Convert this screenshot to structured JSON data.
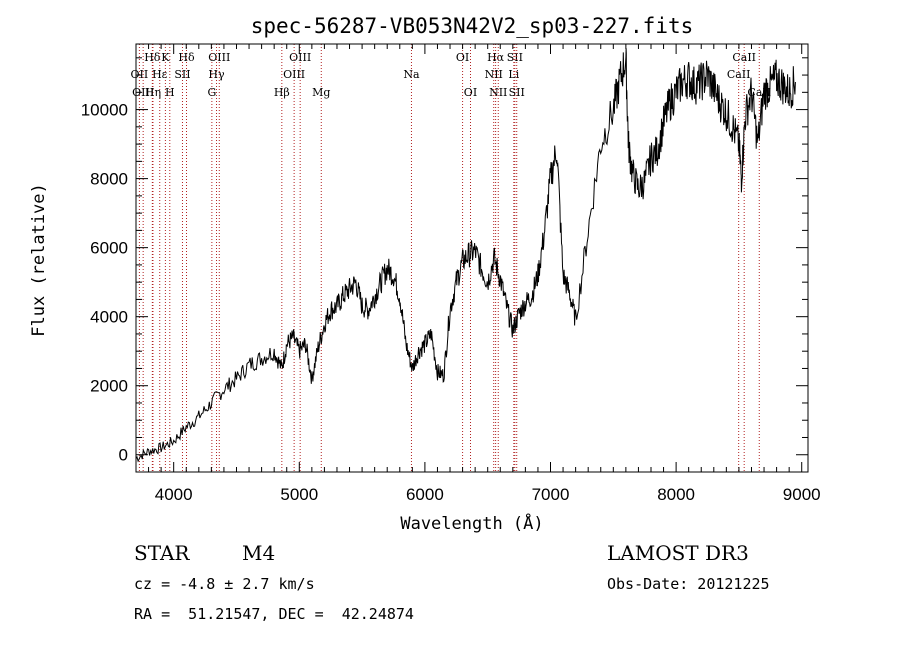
{
  "chart_data": {
    "type": "line",
    "title": "spec-56287-VB053N42V2_sp03-227.fits",
    "xlabel": "Wavelength (Å)",
    "ylabel": "Flux (relative)",
    "xlim": [
      3700,
      9050
    ],
    "ylim": [
      -500,
      11900
    ],
    "x_ticks": [
      "4000",
      "5000",
      "6000",
      "7000",
      "8000",
      "9000"
    ],
    "y_ticks": [
      "0",
      "2000",
      "4000",
      "6000",
      "8000",
      "10000"
    ],
    "grid": false,
    "series": [
      {
        "x": [
          3700,
          3800,
          3900,
          4000,
          4100,
          4200,
          4300,
          4400,
          4500,
          4600,
          4700,
          4800,
          4860,
          4900,
          4950,
          5000,
          5050,
          5100,
          5150,
          5200,
          5250,
          5300,
          5350,
          5400,
          5450,
          5500,
          5550,
          5600,
          5650,
          5700,
          5750,
          5800,
          5850,
          5900,
          5950,
          6000,
          6050,
          6100,
          6150,
          6200,
          6250,
          6300,
          6350,
          6400,
          6450,
          6500,
          6550,
          6600,
          6650,
          6700,
          6750,
          6800,
          6850,
          6900,
          6950,
          7000,
          7050,
          7100,
          7150,
          7200,
          7300,
          7400,
          7500,
          7550,
          7600,
          7620,
          7650,
          7700,
          7750,
          7800,
          7850,
          7900,
          7950,
          8000,
          8050,
          8100,
          8150,
          8200,
          8250,
          8300,
          8350,
          8400,
          8450,
          8500,
          8520,
          8550,
          8600,
          8650,
          8700,
          8750,
          8800,
          8850,
          8900,
          8950
        ],
        "y": [
          -100,
          100,
          200,
          400,
          800,
          1100,
          1500,
          1900,
          2200,
          2600,
          2800,
          3000,
          2500,
          3200,
          3400,
          3000,
          3200,
          2200,
          3100,
          3800,
          4200,
          4300,
          4600,
          4800,
          5000,
          4300,
          4200,
          4600,
          5000,
          5400,
          5200,
          4600,
          3200,
          2500,
          3000,
          3200,
          3500,
          2400,
          2300,
          4200,
          5000,
          5600,
          5800,
          5900,
          5400,
          5000,
          5700,
          5100,
          4300,
          3600,
          4100,
          4400,
          4600,
          5200,
          6400,
          8000,
          8900,
          5200,
          4700,
          3900,
          6500,
          9000,
          10000,
          10800,
          11500,
          9000,
          8200,
          7700,
          7900,
          8600,
          8800,
          9600,
          10200,
          10500,
          10800,
          10900,
          10700,
          10800,
          11000,
          10600,
          10200,
          9900,
          9500,
          9000,
          8000,
          9800,
          10500,
          9000,
          10500,
          10700,
          10900,
          10700,
          10500,
          10800
        ]
      }
    ],
    "line_markers": [
      {
        "label": "Hδ",
        "wavelength": 3830,
        "row": 1
      },
      {
        "label": "OII",
        "wavelength": 3727,
        "row": 2
      },
      {
        "label": "OIII",
        "wavelength": 3757,
        "row": 3
      },
      {
        "label": "K",
        "wavelength": 3934,
        "row": 1
      },
      {
        "label": "Hε",
        "wavelength": 3889,
        "row": 2
      },
      {
        "label": "Hη",
        "wavelength": 3835,
        "row": 3
      },
      {
        "label": "Hδ",
        "wavelength": 4102,
        "row": 1
      },
      {
        "label": "SII",
        "wavelength": 4070,
        "row": 2
      },
      {
        "label": "H",
        "wavelength": 3969,
        "row": 3
      },
      {
        "label": "OIII",
        "wavelength": 4363,
        "row": 1
      },
      {
        "label": "Hγ",
        "wavelength": 4341,
        "row": 2
      },
      {
        "label": "G",
        "wavelength": 4304,
        "row": 3
      },
      {
        "label": "OIII",
        "wavelength": 5007,
        "row": 1
      },
      {
        "label": "OIII",
        "wavelength": 4959,
        "row": 2
      },
      {
        "label": "Hβ",
        "wavelength": 4861,
        "row": 3
      },
      {
        "label": "Mg",
        "wavelength": 5175,
        "row": 3
      },
      {
        "label": "Na",
        "wavelength": 5893,
        "row": 2
      },
      {
        "label": "OI",
        "wavelength": 6300,
        "row": 1
      },
      {
        "label": "OI",
        "wavelength": 6363,
        "row": 3
      },
      {
        "label": "Hα",
        "wavelength": 6563,
        "row": 1
      },
      {
        "label": "SII",
        "wavelength": 6716,
        "row": 1
      },
      {
        "label": "NII",
        "wavelength": 6548,
        "row": 2
      },
      {
        "label": "Li",
        "wavelength": 6708,
        "row": 2
      },
      {
        "label": "NII",
        "wavelength": 6584,
        "row": 3
      },
      {
        "label": "SII",
        "wavelength": 6731,
        "row": 3
      },
      {
        "label": "CaII",
        "wavelength": 8542,
        "row": 1
      },
      {
        "label": "CaII",
        "wavelength": 8498,
        "row": 2
      },
      {
        "label": "CaII",
        "wavelength": 8662,
        "row": 3
      }
    ],
    "marker_color": "#b22222"
  },
  "info": {
    "class": "STAR",
    "subclass": "M4",
    "survey": "LAMOST DR3",
    "cz": "cz = -4.8 ± 2.7 km/s",
    "obs_date": "Obs-Date: 20121225",
    "radec": "RA =  51.21547, DEC =  42.24874"
  }
}
